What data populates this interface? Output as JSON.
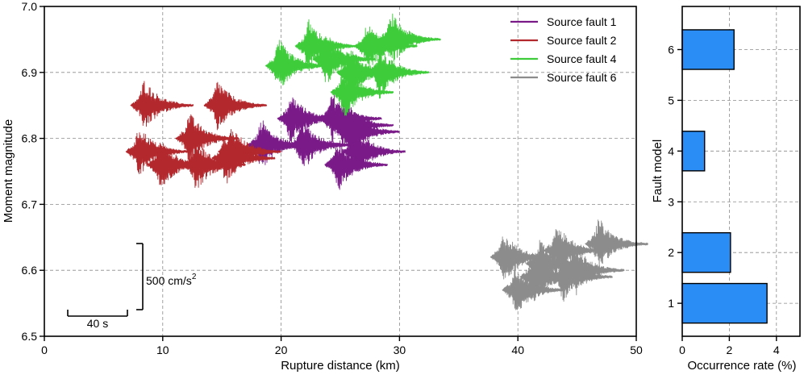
{
  "chart_data": [
    {
      "type": "scatter",
      "title": "",
      "xlabel": "Rupture distance (km)",
      "ylabel": "Moment magnitude",
      "xlim": [
        0,
        50
      ],
      "ylim": [
        6.5,
        7.0
      ],
      "xticks": [
        0,
        10,
        20,
        30,
        40,
        50
      ],
      "yticks": [
        6.5,
        6.6,
        6.7,
        6.8,
        6.9,
        7.0
      ],
      "ytick_labels": [
        "6.5",
        "6.6",
        "6.7",
        "6.8",
        "6.9",
        "7.0"
      ],
      "grid": true,
      "legend_position": "top-right",
      "marker": "waveform",
      "scale_bar": {
        "time_label": "40 s",
        "amp_label_base": "500 cm/s",
        "amp_label_exp": "2"
      },
      "series": [
        {
          "name": "Source fault 1",
          "color": "#7a1a88",
          "points": [
            {
              "x": 18.5,
              "y": 6.79
            },
            {
              "x": 21.0,
              "y": 6.83
            },
            {
              "x": 22.0,
              "y": 6.79
            },
            {
              "x": 24.5,
              "y": 6.83
            },
            {
              "x": 25.5,
              "y": 6.82
            },
            {
              "x": 26.5,
              "y": 6.78
            },
            {
              "x": 25.0,
              "y": 6.76
            },
            {
              "x": 26.0,
              "y": 6.81
            }
          ]
        },
        {
          "name": "Source fault 2",
          "color": "#b3282d",
          "points": [
            {
              "x": 8.6,
              "y": 6.85
            },
            {
              "x": 14.8,
              "y": 6.85
            },
            {
              "x": 8.2,
              "y": 6.78
            },
            {
              "x": 12.4,
              "y": 6.8
            },
            {
              "x": 10.0,
              "y": 6.76
            },
            {
              "x": 16.0,
              "y": 6.78
            },
            {
              "x": 13.0,
              "y": 6.76
            },
            {
              "x": 15.5,
              "y": 6.77
            }
          ]
        },
        {
          "name": "Source fault 4",
          "color": "#3ecc3a",
          "points": [
            {
              "x": 20.0,
              "y": 6.91
            },
            {
              "x": 24.0,
              "y": 6.92
            },
            {
              "x": 29.5,
              "y": 6.95
            },
            {
              "x": 26.0,
              "y": 6.9
            },
            {
              "x": 25.5,
              "y": 6.87
            },
            {
              "x": 27.5,
              "y": 6.94
            },
            {
              "x": 22.5,
              "y": 6.94
            },
            {
              "x": 28.5,
              "y": 6.9
            }
          ]
        },
        {
          "name": "Source fault 6",
          "color": "#8c8c8c",
          "points": [
            {
              "x": 39.0,
              "y": 6.62
            },
            {
              "x": 42.0,
              "y": 6.61
            },
            {
              "x": 47.0,
              "y": 6.64
            },
            {
              "x": 45.0,
              "y": 6.6
            },
            {
              "x": 43.5,
              "y": 6.63
            },
            {
              "x": 40.0,
              "y": 6.57
            },
            {
              "x": 44.0,
              "y": 6.59
            },
            {
              "x": 41.5,
              "y": 6.59
            }
          ]
        }
      ]
    },
    {
      "type": "bar",
      "orientation": "horizontal",
      "title": "",
      "xlabel": "Occurrence rate (%)",
      "ylabel": "Fault model",
      "categories": [
        "1",
        "2",
        "3",
        "4",
        "5",
        "6"
      ],
      "values": [
        3.6,
        2.05,
        0,
        0.95,
        0,
        2.2
      ],
      "xlim": [
        0,
        5
      ],
      "xticks": [
        0,
        2,
        4
      ],
      "bar_color": "#2a8cf5",
      "grid": true
    }
  ]
}
